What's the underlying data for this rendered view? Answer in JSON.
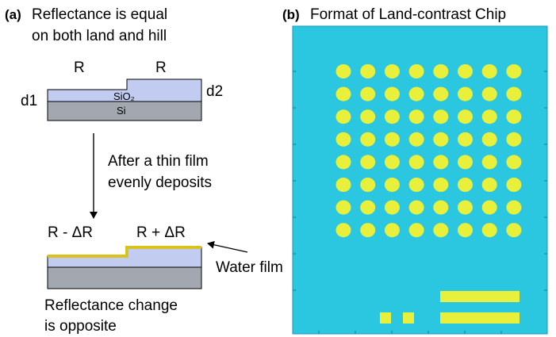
{
  "panel_a": {
    "tag": "(a)",
    "heading_line1": "Reflectance is equal",
    "heading_line2": "on both land and hill",
    "r_left": "R",
    "r_right": "R",
    "d1": "d1",
    "d2": "d2",
    "sio2_label": "SiO₂",
    "si_label": "Si",
    "process_line1": "After a thin film",
    "process_line2": "evenly deposits",
    "r_minus": "R - ΔR",
    "r_plus": "R + ΔR",
    "water_film": "Water film",
    "result_line1": "Reflectance change",
    "result_line2": "is opposite"
  },
  "panel_b": {
    "tag": "(b)",
    "title": "Format of Land-contrast Chip",
    "chip_color": "#2bc6e0",
    "spot_color": "#e8f03c",
    "spot_grid": {
      "rows": 8,
      "cols": 8
    },
    "small_squares": 2,
    "bars": 2
  },
  "colors": {
    "oxide": "#c2cbf0",
    "silicon": "#a2a7b0",
    "film": "#d8c21e"
  }
}
